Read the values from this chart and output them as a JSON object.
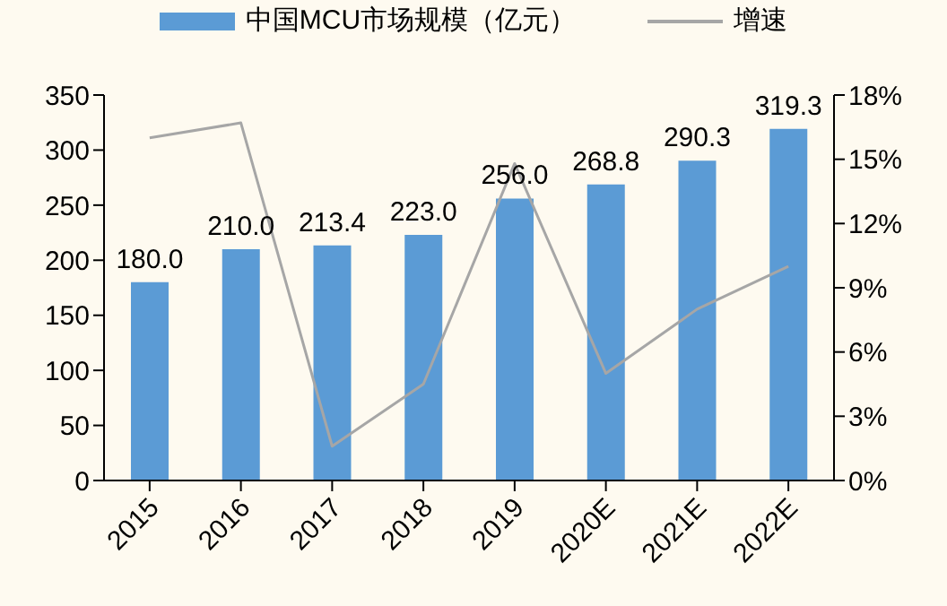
{
  "chart_data": {
    "type": "bar",
    "categories": [
      "2015",
      "2016",
      "2017",
      "2018",
      "2019",
      "2020E",
      "2021E",
      "2022E"
    ],
    "series": [
      {
        "name": "中国MCU市场规模（亿元）",
        "color": "#5b9bd5",
        "values": [
          180.0,
          210.0,
          213.4,
          223.0,
          256.0,
          268.8,
          290.3,
          319.3
        ],
        "value_labels": [
          "180.0",
          "210.0",
          "213.4",
          "223.0",
          "256.0",
          "268.8",
          "290.3",
          "319.3"
        ]
      },
      {
        "name": "增速",
        "type": "line",
        "axis": "y2",
        "color": "#a6a6a6",
        "values": [
          16.0,
          16.7,
          1.6,
          4.5,
          14.8,
          5.0,
          8.0,
          10.0
        ]
      }
    ],
    "ylim": [
      0,
      350
    ],
    "yticks": [
      0,
      50,
      100,
      150,
      200,
      250,
      300,
      350
    ],
    "y2lim": [
      0,
      18
    ],
    "y2ticks": [
      {
        "value": 0,
        "label": "0%"
      },
      {
        "value": 3,
        "label": "3%"
      },
      {
        "value": 6,
        "label": "6%"
      },
      {
        "value": 9,
        "label": "9%"
      },
      {
        "value": 12,
        "label": "12%"
      },
      {
        "value": 15,
        "label": "15%"
      },
      {
        "value": 18,
        "label": "18%"
      }
    ],
    "legend": "top",
    "grid": false,
    "marker": "none"
  }
}
